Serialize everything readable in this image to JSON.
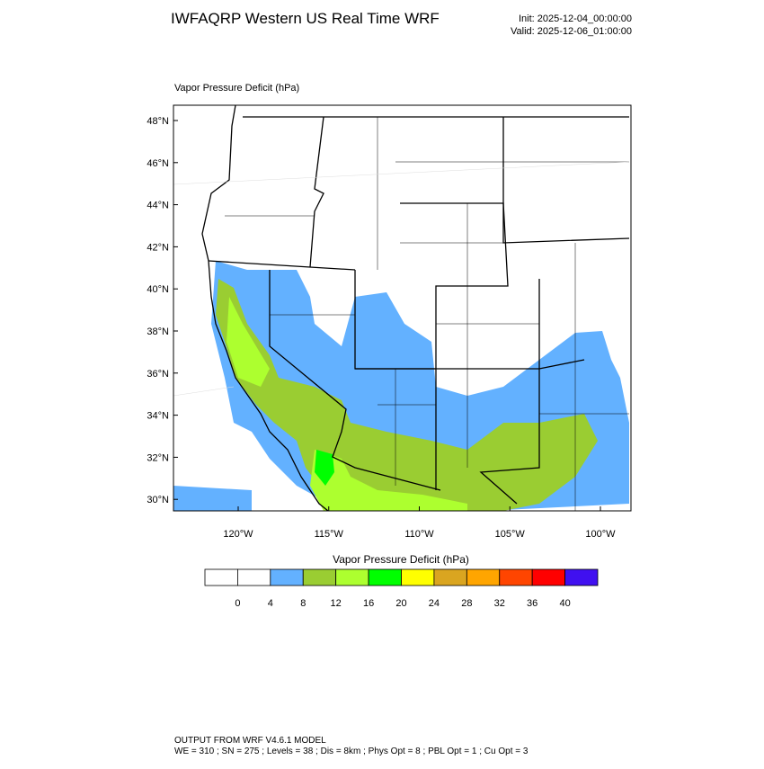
{
  "header": {
    "title": "IWFAQRP Western US Real Time WRF",
    "init": "Init: 2025-12-04_00:00:00",
    "valid": "Valid: 2025-12-06_01:00:00"
  },
  "map": {
    "label": "Vapor Pressure Deficit   (hPa)",
    "lat_labels": [
      "48°N",
      "46°N",
      "44°N",
      "42°N",
      "40°N",
      "38°N",
      "36°N",
      "34°N",
      "32°N",
      "30°N"
    ],
    "lon_labels": [
      "120°W",
      "115°W",
      "110°W",
      "105°W",
      "100°W"
    ]
  },
  "colorbar": {
    "title": "Vapor Pressure Deficit  (hPa)",
    "colors": [
      "#ffffff",
      "#ffffff",
      "#63b1ff",
      "#9acd32",
      "#adff2f",
      "#00ff00",
      "#ffff00",
      "#daa520",
      "#ffa500",
      "#ff4500",
      "#ff0000",
      "#4010f0"
    ],
    "labels": [
      "0",
      "4",
      "8",
      "12",
      "16",
      "20",
      "24",
      "28",
      "32",
      "36",
      "40"
    ]
  },
  "footer": {
    "line1": "OUTPUT FROM WRF V4.6.1 MODEL",
    "line2": "WE = 310 ; SN = 275 ; Levels = 38 ; Dis = 8km ; Phys Opt = 8 ; PBL Opt = 1 ; Cu Opt = 3"
  }
}
